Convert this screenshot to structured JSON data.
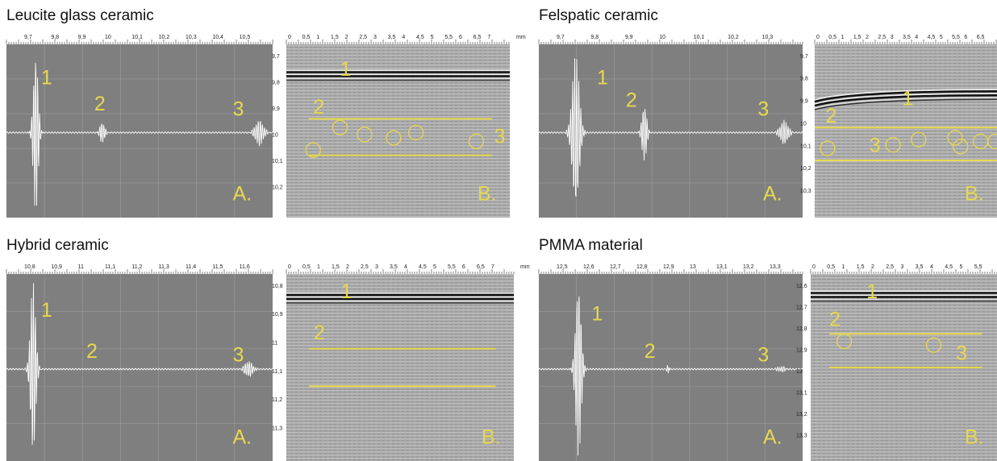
{
  "panels": [
    {
      "title": "Leucite glass ceramic",
      "a_scan": {
        "ruler": [
          "9,7",
          "9,8",
          "9,9",
          "10",
          "10,1",
          "10,2",
          "10,3",
          "10,4",
          "10,5"
        ],
        "labels": [
          "1",
          "2",
          "3"
        ],
        "corner": "A."
      },
      "b_scan": {
        "ruler": [
          "0",
          "0,5",
          "1",
          "1,5",
          "2",
          "2,5",
          "3",
          "3,5",
          "4",
          "4,5",
          "5",
          "5,5",
          "6",
          "6,5",
          "7"
        ],
        "unit": "mm",
        "side": [
          "9,7",
          "9,8",
          "9,9",
          "10",
          "10,1",
          "10,2"
        ],
        "labels": [
          "1",
          "2",
          "3"
        ],
        "corner": "B."
      }
    },
    {
      "title": "Felspatic ceramic",
      "a_scan": {
        "ruler": [
          "9,7",
          "9,8",
          "9,9",
          "10",
          "10,1",
          "10,2",
          "10,3"
        ],
        "labels": [
          "1",
          "2",
          "3"
        ],
        "corner": "A."
      },
      "b_scan": {
        "ruler": [
          "0",
          "0,5",
          "1",
          "1,5",
          "2",
          "2,5",
          "3",
          "3,5",
          "4",
          "4,5",
          "5",
          "5,5",
          "6",
          "6,5"
        ],
        "side": [
          "9,7",
          "9,8",
          "9,9",
          "10",
          "10,1",
          "10,2",
          "10,3"
        ],
        "labels": [
          "1",
          "2",
          "3"
        ],
        "corner": "B."
      }
    },
    {
      "title": "Hybrid ceramic",
      "a_scan": {
        "ruler": [
          "10,8",
          "10,9",
          "11",
          "11,1",
          "11,2",
          "11,3",
          "11,4",
          "11,5",
          "11,6"
        ],
        "labels": [
          "1",
          "2",
          "3"
        ],
        "corner": "A."
      },
      "b_scan": {
        "ruler": [
          "0",
          "0,5",
          "1",
          "1,5",
          "2",
          "2,5",
          "3",
          "3,5",
          "4",
          "4,5",
          "5",
          "5,5",
          "6",
          "6,5",
          "7"
        ],
        "unit": "mm",
        "side": [
          "10,8",
          "10,9",
          "11",
          "11,1",
          "11,2",
          "11,3"
        ],
        "labels": [
          "1",
          "2"
        ],
        "corner": "B."
      }
    },
    {
      "title": "PMMA material",
      "a_scan": {
        "ruler": [
          "12,5",
          "12,6",
          "12,7",
          "12,8",
          "12,9",
          "13",
          "13,1",
          "13,2",
          "13,3"
        ],
        "labels": [
          "1",
          "2",
          "3"
        ],
        "corner": "A."
      },
      "b_scan": {
        "ruler": [
          "0",
          "0,5",
          "1",
          "1,5",
          "2",
          "2,5",
          "3",
          "3,5",
          "4",
          "4,5",
          "5",
          "5,5"
        ],
        "side": [
          "12,6",
          "12,7",
          "12,8",
          "12,9",
          "13",
          "13,1",
          "13,2",
          "13,3"
        ],
        "labels": [
          "1",
          "2",
          "3"
        ],
        "corner": "B."
      }
    }
  ]
}
